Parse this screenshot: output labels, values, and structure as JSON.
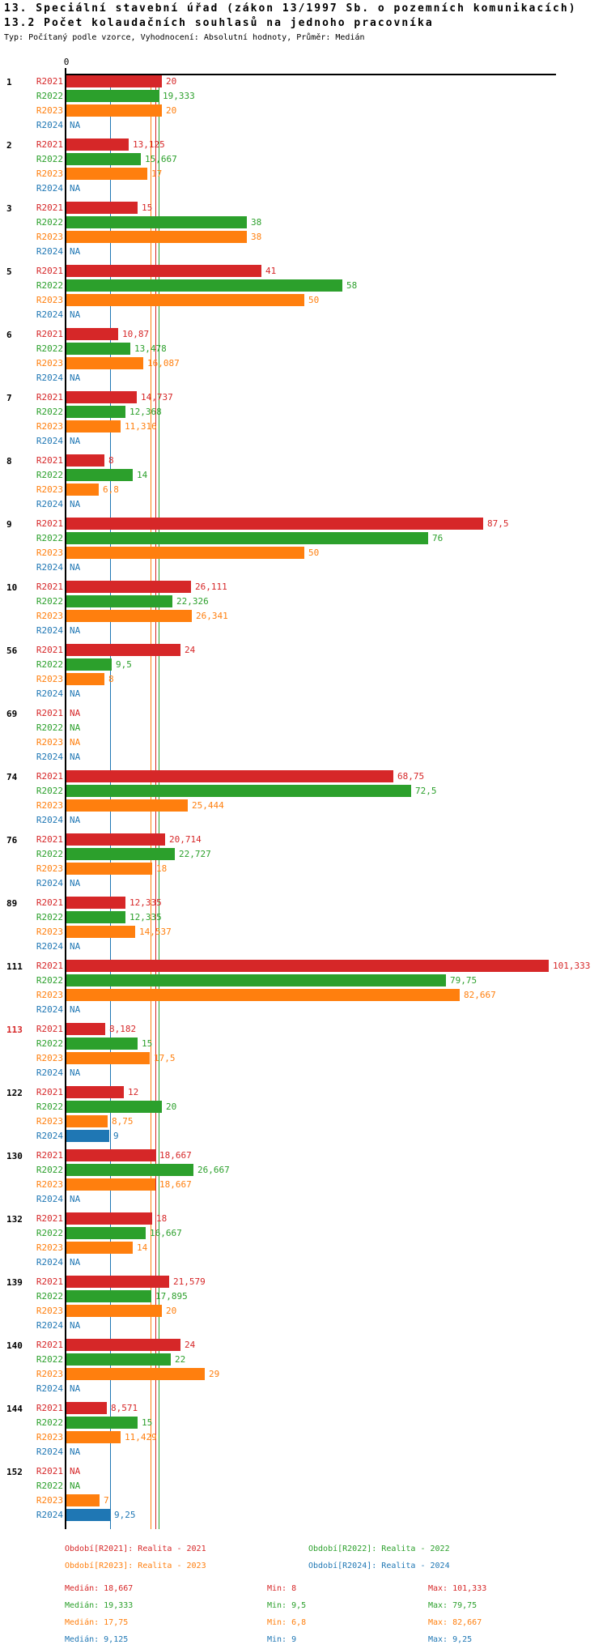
{
  "chart_data": {
    "type": "bar",
    "orientation": "horizontal",
    "title": "13. Speciální stavební úřad (zákon 13/1997 Sb. o pozemních komunikacích)",
    "subtitle": "13.2 Počet kolaudačních souhlasů na jednoho pracovníka",
    "meta": "Typ: Počítaný podle vzorce, Vyhodnocení: Absolutní hodnoty, Průměr: Medián",
    "x_axis": {
      "zero_label": "0",
      "min": 0,
      "approx_max": 103,
      "grid": false
    },
    "na_label": "NA",
    "series": [
      {
        "id": "R2021",
        "color": "#d62728",
        "legend_label": "Období[R2021]: Realita - 2021"
      },
      {
        "id": "R2022",
        "color": "#2ca02c",
        "legend_label": "Období[R2022]: Realita - 2022"
      },
      {
        "id": "R2023",
        "color": "#ff7f0e",
        "legend_label": "Období[R2023]: Realita - 2023"
      },
      {
        "id": "R2024",
        "color": "#1f77b4",
        "legend_label": "Období[R2024]: Realita - 2024"
      }
    ],
    "medians": {
      "R2021": 18.667,
      "R2022": 19.333,
      "R2023": 17.75,
      "R2024": 9.125
    },
    "groups": [
      {
        "id": "1",
        "highlighted": false,
        "values": {
          "R2021": 20,
          "R2022": 19.333,
          "R2023": 20,
          "R2024": null
        },
        "labels": {
          "R2021": "20",
          "R2022": "19,333",
          "R2023": "20",
          "R2024": "NA"
        }
      },
      {
        "id": "2",
        "highlighted": false,
        "values": {
          "R2021": 13.125,
          "R2022": 15.667,
          "R2023": 17,
          "R2024": null
        },
        "labels": {
          "R2021": "13,125",
          "R2022": "15,667",
          "R2023": "17",
          "R2024": "NA"
        }
      },
      {
        "id": "3",
        "highlighted": false,
        "values": {
          "R2021": 15,
          "R2022": 38,
          "R2023": 38,
          "R2024": null
        },
        "labels": {
          "R2021": "15",
          "R2022": "38",
          "R2023": "38",
          "R2024": "NA"
        }
      },
      {
        "id": "5",
        "highlighted": false,
        "values": {
          "R2021": 41,
          "R2022": 58,
          "R2023": 50,
          "R2024": null
        },
        "labels": {
          "R2021": "41",
          "R2022": "58",
          "R2023": "50",
          "R2024": "NA"
        }
      },
      {
        "id": "6",
        "highlighted": false,
        "values": {
          "R2021": 10.87,
          "R2022": 13.478,
          "R2023": 16.087,
          "R2024": null
        },
        "labels": {
          "R2021": "10,87",
          "R2022": "13,478",
          "R2023": "16,087",
          "R2024": "NA"
        }
      },
      {
        "id": "7",
        "highlighted": false,
        "values": {
          "R2021": 14.737,
          "R2022": 12.368,
          "R2023": 11.316,
          "R2024": null
        },
        "labels": {
          "R2021": "14,737",
          "R2022": "12,368",
          "R2023": "11,316",
          "R2024": "NA"
        }
      },
      {
        "id": "8",
        "highlighted": false,
        "values": {
          "R2021": 8,
          "R2022": 14,
          "R2023": 6.8,
          "R2024": null
        },
        "labels": {
          "R2021": "8",
          "R2022": "14",
          "R2023": "6,8",
          "R2024": "NA"
        }
      },
      {
        "id": "9",
        "highlighted": false,
        "values": {
          "R2021": 87.5,
          "R2022": 76,
          "R2023": 50,
          "R2024": null
        },
        "labels": {
          "R2021": "87,5",
          "R2022": "76",
          "R2023": "50",
          "R2024": "NA"
        }
      },
      {
        "id": "10",
        "highlighted": false,
        "values": {
          "R2021": 26.111,
          "R2022": 22.326,
          "R2023": 26.341,
          "R2024": null
        },
        "labels": {
          "R2021": "26,111",
          "R2022": "22,326",
          "R2023": "26,341",
          "R2024": "NA"
        }
      },
      {
        "id": "56",
        "highlighted": false,
        "values": {
          "R2021": 24,
          "R2022": 9.5,
          "R2023": 8,
          "R2024": null
        },
        "labels": {
          "R2021": "24",
          "R2022": "9,5",
          "R2023": "8",
          "R2024": "NA"
        }
      },
      {
        "id": "69",
        "highlighted": false,
        "values": {
          "R2021": null,
          "R2022": null,
          "R2023": null,
          "R2024": null
        },
        "labels": {
          "R2021": "NA",
          "R2022": "NA",
          "R2023": "NA",
          "R2024": "NA"
        }
      },
      {
        "id": "74",
        "highlighted": false,
        "values": {
          "R2021": 68.75,
          "R2022": 72.5,
          "R2023": 25.444,
          "R2024": null
        },
        "labels": {
          "R2021": "68,75",
          "R2022": "72,5",
          "R2023": "25,444",
          "R2024": "NA"
        }
      },
      {
        "id": "76",
        "highlighted": false,
        "values": {
          "R2021": 20.714,
          "R2022": 22.727,
          "R2023": 18,
          "R2024": null
        },
        "labels": {
          "R2021": "20,714",
          "R2022": "22,727",
          "R2023": "18",
          "R2024": "NA"
        }
      },
      {
        "id": "89",
        "highlighted": false,
        "values": {
          "R2021": 12.335,
          "R2022": 12.335,
          "R2023": 14.537,
          "R2024": null
        },
        "labels": {
          "R2021": "12,335",
          "R2022": "12,335",
          "R2023": "14,537",
          "R2024": "NA"
        }
      },
      {
        "id": "111",
        "highlighted": false,
        "values": {
          "R2021": 101.333,
          "R2022": 79.75,
          "R2023": 82.667,
          "R2024": null
        },
        "labels": {
          "R2021": "101,333",
          "R2022": "79,75",
          "R2023": "82,667",
          "R2024": "NA"
        }
      },
      {
        "id": "113",
        "highlighted": true,
        "values": {
          "R2021": 8.182,
          "R2022": 15,
          "R2023": 17.5,
          "R2024": null
        },
        "labels": {
          "R2021": "8,182",
          "R2022": "15",
          "R2023": "17,5",
          "R2024": "NA"
        }
      },
      {
        "id": "122",
        "highlighted": false,
        "values": {
          "R2021": 12,
          "R2022": 20,
          "R2023": 8.75,
          "R2024": 9
        },
        "labels": {
          "R2021": "12",
          "R2022": "20",
          "R2023": "8,75",
          "R2024": "9"
        }
      },
      {
        "id": "130",
        "highlighted": false,
        "values": {
          "R2021": 18.667,
          "R2022": 26.667,
          "R2023": 18.667,
          "R2024": null
        },
        "labels": {
          "R2021": "18,667",
          "R2022": "26,667",
          "R2023": "18,667",
          "R2024": "NA"
        }
      },
      {
        "id": "132",
        "highlighted": false,
        "values": {
          "R2021": 18,
          "R2022": 16.667,
          "R2023": 14,
          "R2024": null
        },
        "labels": {
          "R2021": "18",
          "R2022": "16,667",
          "R2023": "14",
          "R2024": "NA"
        }
      },
      {
        "id": "139",
        "highlighted": false,
        "values": {
          "R2021": 21.579,
          "R2022": 17.895,
          "R2023": 20,
          "R2024": null
        },
        "labels": {
          "R2021": "21,579",
          "R2022": "17,895",
          "R2023": "20",
          "R2024": "NA"
        }
      },
      {
        "id": "140",
        "highlighted": false,
        "values": {
          "R2021": 24,
          "R2022": 22,
          "R2023": 29,
          "R2024": null
        },
        "labels": {
          "R2021": "24",
          "R2022": "22",
          "R2023": "29",
          "R2024": "NA"
        }
      },
      {
        "id": "144",
        "highlighted": false,
        "values": {
          "R2021": 8.571,
          "R2022": 15,
          "R2023": 11.429,
          "R2024": null
        },
        "labels": {
          "R2021": "8,571",
          "R2022": "15",
          "R2023": "11,429",
          "R2024": "NA"
        }
      },
      {
        "id": "152",
        "highlighted": false,
        "values": {
          "R2021": null,
          "R2022": null,
          "R2023": 7,
          "R2024": 9.25
        },
        "labels": {
          "R2021": "NA",
          "R2022": "NA",
          "R2023": "7",
          "R2024": "9,25"
        }
      }
    ],
    "stats": [
      {
        "series": "R2021",
        "median_label": "Medián: 18,667",
        "min_label": "Min: 8",
        "max_label": "Max: 101,333"
      },
      {
        "series": "R2022",
        "median_label": "Medián: 19,333",
        "min_label": "Min: 9,5",
        "max_label": "Max: 79,75"
      },
      {
        "series": "R2023",
        "median_label": "Medián: 17,75",
        "min_label": "Min: 6,8",
        "max_label": "Max: 82,667"
      },
      {
        "series": "R2024",
        "median_label": "Medián: 9,125",
        "min_label": "Min: 9",
        "max_label": "Max: 9,25"
      }
    ]
  },
  "colors": {
    "axis": "#000000",
    "group_label": "#000000",
    "group_label_highlight": "#d62728",
    "background": "#ffffff"
  }
}
